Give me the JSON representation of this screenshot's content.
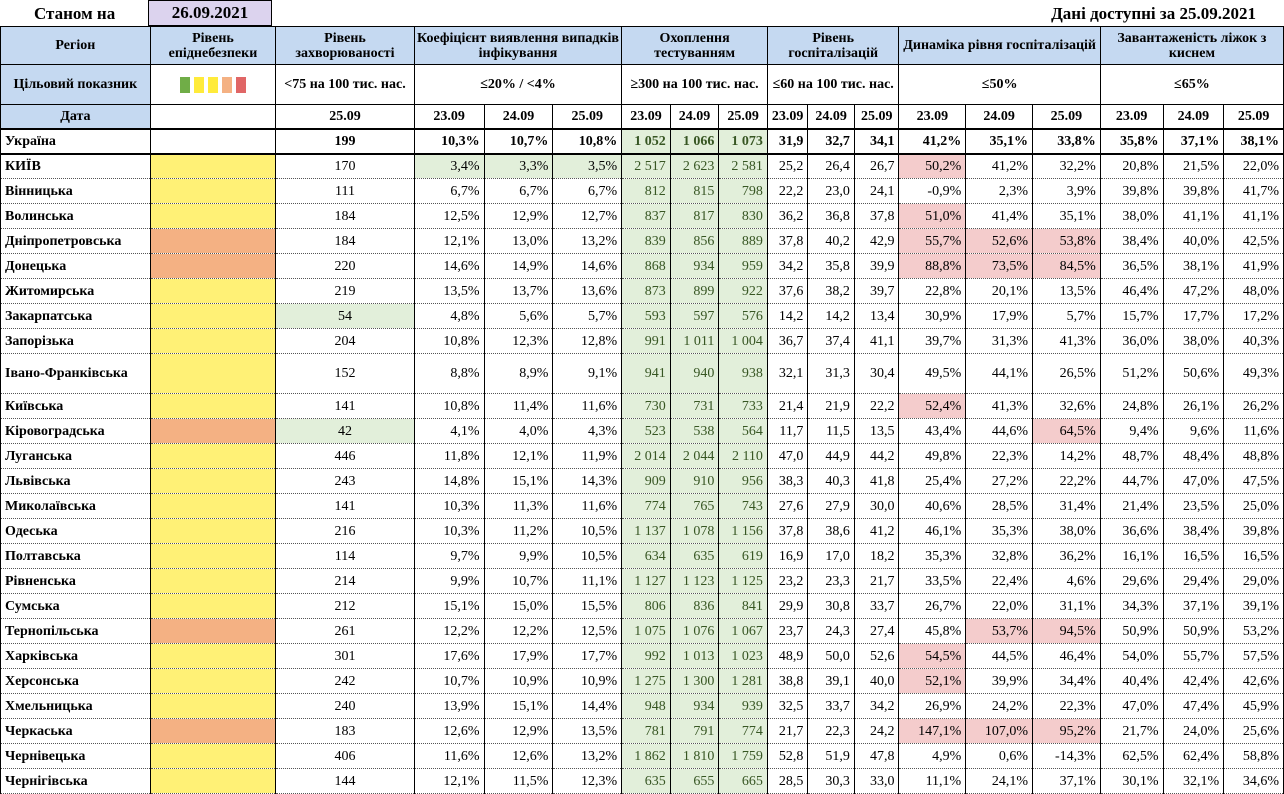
{
  "header": {
    "as_of_label": "Станом на",
    "as_of_date": "26.09.2021",
    "data_note": "Дані доступні за 25.09.2021"
  },
  "columns": {
    "region": "Регіон",
    "epi_level": "Рівень епіднебезпеки",
    "incidence": "Рівень захворюваності",
    "detection": "Коефіцієнт виявлення випадків інфікування",
    "testing": "Охоплення тестуванням",
    "hosp": "Рівень госпіталізацій",
    "hosp_dyn": "Динаміка рівня госпіталізацій",
    "oxygen": "Завантаженість ліжок з киснем"
  },
  "targets": {
    "label": "Цільовий показник",
    "swatch_colors": [
      "#70ad47",
      "#ffeb3b",
      "#ffeb3b",
      "#f4b183",
      "#e06666"
    ],
    "incidence": "<75 на 100 тис. нас.",
    "detection": "≤20% / <4%",
    "testing": "≥300 на 100 тис. нас.",
    "hosp": "≤60 на 100 тис. нас.",
    "hosp_dyn": "≤50%",
    "oxygen": "≤65%"
  },
  "dates": {
    "label": "Дата",
    "incidence": "25.09",
    "d1": "23.09",
    "d2": "24.09",
    "d3": "25.09"
  },
  "ukraine": {
    "name": "Україна",
    "incidence": "199",
    "detection": [
      "10,3%",
      "10,7%",
      "10,8%"
    ],
    "testing": [
      "1 052",
      "1 066",
      "1 073"
    ],
    "hosp": [
      "31,9",
      "32,7",
      "34,1"
    ],
    "hosp_dyn": [
      "41,2%",
      "35,1%",
      "33,8%"
    ],
    "oxygen": [
      "35,8%",
      "37,1%",
      "38,1%"
    ]
  },
  "regions": [
    {
      "name": "КИЇВ",
      "level": "yellow",
      "incidence": "170",
      "inc_ok": false,
      "detection": [
        "3,4%",
        "3,3%",
        "3,5%"
      ],
      "det_ok": true,
      "testing": [
        "2 517",
        "2 623",
        "2 581"
      ],
      "hosp": [
        "25,2",
        "26,4",
        "26,7"
      ],
      "hosp_dyn": [
        "50,2%",
        "41,2%",
        "32,2%"
      ],
      "dyn_bad": [
        true,
        false,
        false
      ],
      "oxygen": [
        "20,8%",
        "21,5%",
        "22,0%"
      ]
    },
    {
      "name": "Вінницька",
      "level": "yellow",
      "incidence": "111",
      "inc_ok": false,
      "detection": [
        "6,7%",
        "6,7%",
        "6,7%"
      ],
      "det_ok": false,
      "testing": [
        "812",
        "815",
        "798"
      ],
      "hosp": [
        "22,2",
        "23,0",
        "24,1"
      ],
      "hosp_dyn": [
        "-0,9%",
        "2,3%",
        "3,9%"
      ],
      "dyn_bad": [
        false,
        false,
        false
      ],
      "oxygen": [
        "39,8%",
        "39,8%",
        "41,7%"
      ]
    },
    {
      "name": "Волинська",
      "level": "yellow",
      "incidence": "184",
      "inc_ok": false,
      "detection": [
        "12,5%",
        "12,9%",
        "12,7%"
      ],
      "det_ok": false,
      "testing": [
        "837",
        "817",
        "830"
      ],
      "hosp": [
        "36,2",
        "36,8",
        "37,8"
      ],
      "hosp_dyn": [
        "51,0%",
        "41,4%",
        "35,1%"
      ],
      "dyn_bad": [
        true,
        false,
        false
      ],
      "oxygen": [
        "38,0%",
        "41,1%",
        "41,1%"
      ]
    },
    {
      "name": "Дніпропетровська",
      "level": "orange",
      "incidence": "184",
      "inc_ok": false,
      "detection": [
        "12,1%",
        "13,0%",
        "13,2%"
      ],
      "det_ok": false,
      "testing": [
        "839",
        "856",
        "889"
      ],
      "hosp": [
        "37,8",
        "40,2",
        "42,9"
      ],
      "hosp_dyn": [
        "55,7%",
        "52,6%",
        "53,8%"
      ],
      "dyn_bad": [
        true,
        true,
        true
      ],
      "oxygen": [
        "38,4%",
        "40,0%",
        "42,5%"
      ]
    },
    {
      "name": "Донецька",
      "level": "orange",
      "incidence": "220",
      "inc_ok": false,
      "detection": [
        "14,6%",
        "14,9%",
        "14,6%"
      ],
      "det_ok": false,
      "testing": [
        "868",
        "934",
        "959"
      ],
      "hosp": [
        "34,2",
        "35,8",
        "39,9"
      ],
      "hosp_dyn": [
        "88,8%",
        "73,5%",
        "84,5%"
      ],
      "dyn_bad": [
        true,
        true,
        true
      ],
      "oxygen": [
        "36,5%",
        "38,1%",
        "41,9%"
      ]
    },
    {
      "name": "Житомирська",
      "level": "yellow",
      "incidence": "219",
      "inc_ok": false,
      "detection": [
        "13,5%",
        "13,7%",
        "13,6%"
      ],
      "det_ok": false,
      "testing": [
        "873",
        "899",
        "922"
      ],
      "hosp": [
        "37,6",
        "38,2",
        "39,7"
      ],
      "hosp_dyn": [
        "22,8%",
        "20,1%",
        "13,5%"
      ],
      "dyn_bad": [
        false,
        false,
        false
      ],
      "oxygen": [
        "46,4%",
        "47,2%",
        "48,0%"
      ]
    },
    {
      "name": "Закарпатська",
      "level": "yellow",
      "incidence": "54",
      "inc_ok": true,
      "detection": [
        "4,8%",
        "5,6%",
        "5,7%"
      ],
      "det_ok": false,
      "testing": [
        "593",
        "597",
        "576"
      ],
      "hosp": [
        "14,2",
        "14,2",
        "13,4"
      ],
      "hosp_dyn": [
        "30,9%",
        "17,9%",
        "5,7%"
      ],
      "dyn_bad": [
        false,
        false,
        false
      ],
      "oxygen": [
        "15,7%",
        "17,7%",
        "17,2%"
      ]
    },
    {
      "name": "Запорізька",
      "level": "yellow",
      "incidence": "204",
      "inc_ok": false,
      "detection": [
        "10,8%",
        "12,3%",
        "12,8%"
      ],
      "det_ok": false,
      "testing": [
        "991",
        "1 011",
        "1 004"
      ],
      "hosp": [
        "36,7",
        "37,4",
        "41,1"
      ],
      "hosp_dyn": [
        "39,7%",
        "31,3%",
        "41,3%"
      ],
      "dyn_bad": [
        false,
        false,
        false
      ],
      "oxygen": [
        "36,0%",
        "38,0%",
        "40,3%"
      ]
    },
    {
      "name": "Івано-Франківська",
      "level": "yellow",
      "incidence": "152",
      "inc_ok": false,
      "detection": [
        "8,8%",
        "8,9%",
        "9,1%"
      ],
      "det_ok": false,
      "testing": [
        "941",
        "940",
        "938"
      ],
      "hosp": [
        "32,1",
        "31,3",
        "30,4"
      ],
      "hosp_dyn": [
        "49,5%",
        "44,1%",
        "26,5%"
      ],
      "dyn_bad": [
        false,
        false,
        false
      ],
      "oxygen": [
        "51,2%",
        "50,6%",
        "49,3%"
      ],
      "tall": true
    },
    {
      "name": "Київська",
      "level": "yellow",
      "incidence": "141",
      "inc_ok": false,
      "detection": [
        "10,8%",
        "11,4%",
        "11,6%"
      ],
      "det_ok": false,
      "testing": [
        "730",
        "731",
        "733"
      ],
      "hosp": [
        "21,4",
        "21,9",
        "22,2"
      ],
      "hosp_dyn": [
        "52,4%",
        "41,3%",
        "32,6%"
      ],
      "dyn_bad": [
        true,
        false,
        false
      ],
      "oxygen": [
        "24,8%",
        "26,1%",
        "26,2%"
      ]
    },
    {
      "name": "Кіровоградська",
      "level": "orange",
      "incidence": "42",
      "inc_ok": true,
      "detection": [
        "4,1%",
        "4,0%",
        "4,3%"
      ],
      "det_ok": false,
      "testing": [
        "523",
        "538",
        "564"
      ],
      "hosp": [
        "11,7",
        "11,5",
        "13,5"
      ],
      "hosp_dyn": [
        "43,4%",
        "44,6%",
        "64,5%"
      ],
      "dyn_bad": [
        false,
        false,
        true
      ],
      "oxygen": [
        "9,4%",
        "9,6%",
        "11,6%"
      ]
    },
    {
      "name": "Луганська",
      "level": "yellow",
      "incidence": "446",
      "inc_ok": false,
      "detection": [
        "11,8%",
        "12,1%",
        "11,9%"
      ],
      "det_ok": false,
      "testing": [
        "2 014",
        "2 044",
        "2 110"
      ],
      "hosp": [
        "47,0",
        "44,9",
        "44,2"
      ],
      "hosp_dyn": [
        "49,8%",
        "22,3%",
        "14,2%"
      ],
      "dyn_bad": [
        false,
        false,
        false
      ],
      "oxygen": [
        "48,7%",
        "48,4%",
        "48,8%"
      ]
    },
    {
      "name": "Львівська",
      "level": "yellow",
      "incidence": "243",
      "inc_ok": false,
      "detection": [
        "14,8%",
        "15,1%",
        "14,3%"
      ],
      "det_ok": false,
      "testing": [
        "909",
        "910",
        "956"
      ],
      "hosp": [
        "38,3",
        "40,3",
        "41,8"
      ],
      "hosp_dyn": [
        "25,4%",
        "27,2%",
        "22,2%"
      ],
      "dyn_bad": [
        false,
        false,
        false
      ],
      "oxygen": [
        "44,7%",
        "47,0%",
        "47,5%"
      ]
    },
    {
      "name": "Миколаївська",
      "level": "yellow",
      "incidence": "141",
      "inc_ok": false,
      "detection": [
        "10,3%",
        "11,3%",
        "11,6%"
      ],
      "det_ok": false,
      "testing": [
        "774",
        "765",
        "743"
      ],
      "hosp": [
        "27,6",
        "27,9",
        "30,0"
      ],
      "hosp_dyn": [
        "40,6%",
        "28,5%",
        "31,4%"
      ],
      "dyn_bad": [
        false,
        false,
        false
      ],
      "oxygen": [
        "21,4%",
        "23,5%",
        "25,0%"
      ]
    },
    {
      "name": "Одеська",
      "level": "yellow",
      "incidence": "216",
      "inc_ok": false,
      "detection": [
        "10,3%",
        "11,2%",
        "10,5%"
      ],
      "det_ok": false,
      "testing": [
        "1 137",
        "1 078",
        "1 156"
      ],
      "hosp": [
        "37,8",
        "38,6",
        "41,2"
      ],
      "hosp_dyn": [
        "46,1%",
        "35,3%",
        "38,0%"
      ],
      "dyn_bad": [
        false,
        false,
        false
      ],
      "oxygen": [
        "36,6%",
        "38,4%",
        "39,8%"
      ]
    },
    {
      "name": "Полтавська",
      "level": "yellow",
      "incidence": "114",
      "inc_ok": false,
      "detection": [
        "9,7%",
        "9,9%",
        "10,5%"
      ],
      "det_ok": false,
      "testing": [
        "634",
        "635",
        "619"
      ],
      "hosp": [
        "16,9",
        "17,0",
        "18,2"
      ],
      "hosp_dyn": [
        "35,3%",
        "32,8%",
        "36,2%"
      ],
      "dyn_bad": [
        false,
        false,
        false
      ],
      "oxygen": [
        "16,1%",
        "16,5%",
        "16,5%"
      ]
    },
    {
      "name": "Рівненська",
      "level": "yellow",
      "incidence": "214",
      "inc_ok": false,
      "detection": [
        "9,9%",
        "10,7%",
        "11,1%"
      ],
      "det_ok": false,
      "testing": [
        "1 127",
        "1 123",
        "1 125"
      ],
      "hosp": [
        "23,2",
        "23,3",
        "21,7"
      ],
      "hosp_dyn": [
        "33,5%",
        "22,4%",
        "4,6%"
      ],
      "dyn_bad": [
        false,
        false,
        false
      ],
      "oxygen": [
        "29,6%",
        "29,4%",
        "29,0%"
      ]
    },
    {
      "name": "Сумська",
      "level": "yellow",
      "incidence": "212",
      "inc_ok": false,
      "detection": [
        "15,1%",
        "15,0%",
        "15,5%"
      ],
      "det_ok": false,
      "testing": [
        "806",
        "836",
        "841"
      ],
      "hosp": [
        "29,9",
        "30,8",
        "33,7"
      ],
      "hosp_dyn": [
        "26,7%",
        "22,0%",
        "31,1%"
      ],
      "dyn_bad": [
        false,
        false,
        false
      ],
      "oxygen": [
        "34,3%",
        "37,1%",
        "39,1%"
      ]
    },
    {
      "name": "Тернопільська",
      "level": "orange",
      "incidence": "261",
      "inc_ok": false,
      "detection": [
        "12,2%",
        "12,2%",
        "12,5%"
      ],
      "det_ok": false,
      "testing": [
        "1 075",
        "1 076",
        "1 067"
      ],
      "hosp": [
        "23,7",
        "24,3",
        "27,4"
      ],
      "hosp_dyn": [
        "45,8%",
        "53,7%",
        "94,5%"
      ],
      "dyn_bad": [
        false,
        true,
        true
      ],
      "oxygen": [
        "50,9%",
        "50,9%",
        "53,2%"
      ]
    },
    {
      "name": "Харківська",
      "level": "yellow",
      "incidence": "301",
      "inc_ok": false,
      "detection": [
        "17,6%",
        "17,9%",
        "17,7%"
      ],
      "det_ok": false,
      "testing": [
        "992",
        "1 013",
        "1 023"
      ],
      "hosp": [
        "48,9",
        "50,0",
        "52,6"
      ],
      "hosp_dyn": [
        "54,5%",
        "44,5%",
        "46,4%"
      ],
      "dyn_bad": [
        true,
        false,
        false
      ],
      "oxygen": [
        "54,0%",
        "55,7%",
        "57,5%"
      ]
    },
    {
      "name": "Херсонська",
      "level": "yellow",
      "incidence": "242",
      "inc_ok": false,
      "detection": [
        "10,7%",
        "10,9%",
        "10,9%"
      ],
      "det_ok": false,
      "testing": [
        "1 275",
        "1 300",
        "1 281"
      ],
      "hosp": [
        "38,8",
        "39,1",
        "40,0"
      ],
      "hosp_dyn": [
        "52,1%",
        "39,9%",
        "34,4%"
      ],
      "dyn_bad": [
        true,
        false,
        false
      ],
      "oxygen": [
        "40,4%",
        "42,4%",
        "42,6%"
      ]
    },
    {
      "name": "Хмельницька",
      "level": "yellow",
      "incidence": "240",
      "inc_ok": false,
      "detection": [
        "13,9%",
        "15,1%",
        "14,4%"
      ],
      "det_ok": false,
      "testing": [
        "948",
        "934",
        "939"
      ],
      "hosp": [
        "32,5",
        "33,7",
        "34,2"
      ],
      "hosp_dyn": [
        "26,9%",
        "24,2%",
        "22,3%"
      ],
      "dyn_bad": [
        false,
        false,
        false
      ],
      "oxygen": [
        "47,0%",
        "47,4%",
        "45,9%"
      ]
    },
    {
      "name": "Черкаська",
      "level": "orange",
      "incidence": "183",
      "inc_ok": false,
      "detection": [
        "12,6%",
        "12,9%",
        "13,5%"
      ],
      "det_ok": false,
      "testing": [
        "781",
        "791",
        "774"
      ],
      "hosp": [
        "21,7",
        "22,3",
        "24,2"
      ],
      "hosp_dyn": [
        "147,1%",
        "107,0%",
        "95,2%"
      ],
      "dyn_bad": [
        true,
        true,
        true
      ],
      "oxygen": [
        "21,7%",
        "24,0%",
        "25,6%"
      ]
    },
    {
      "name": "Чернівецька",
      "level": "yellow",
      "incidence": "406",
      "inc_ok": false,
      "detection": [
        "11,6%",
        "12,6%",
        "13,2%"
      ],
      "det_ok": false,
      "testing": [
        "1 862",
        "1 810",
        "1 759"
      ],
      "hosp": [
        "52,8",
        "51,9",
        "47,8"
      ],
      "hosp_dyn": [
        "4,9%",
        "0,6%",
        "-14,3%"
      ],
      "dyn_bad": [
        false,
        false,
        false
      ],
      "oxygen": [
        "62,5%",
        "62,4%",
        "58,8%"
      ]
    },
    {
      "name": "Чернігівська",
      "level": "yellow",
      "incidence": "144",
      "inc_ok": false,
      "detection": [
        "12,1%",
        "11,5%",
        "12,3%"
      ],
      "det_ok": false,
      "testing": [
        "635",
        "655",
        "665"
      ],
      "hosp": [
        "28,5",
        "30,3",
        "33,0"
      ],
      "hosp_dyn": [
        "11,1%",
        "24,1%",
        "37,1%"
      ],
      "dyn_bad": [
        false,
        false,
        false
      ],
      "oxygen": [
        "30,1%",
        "32,1%",
        "34,6%"
      ]
    }
  ]
}
